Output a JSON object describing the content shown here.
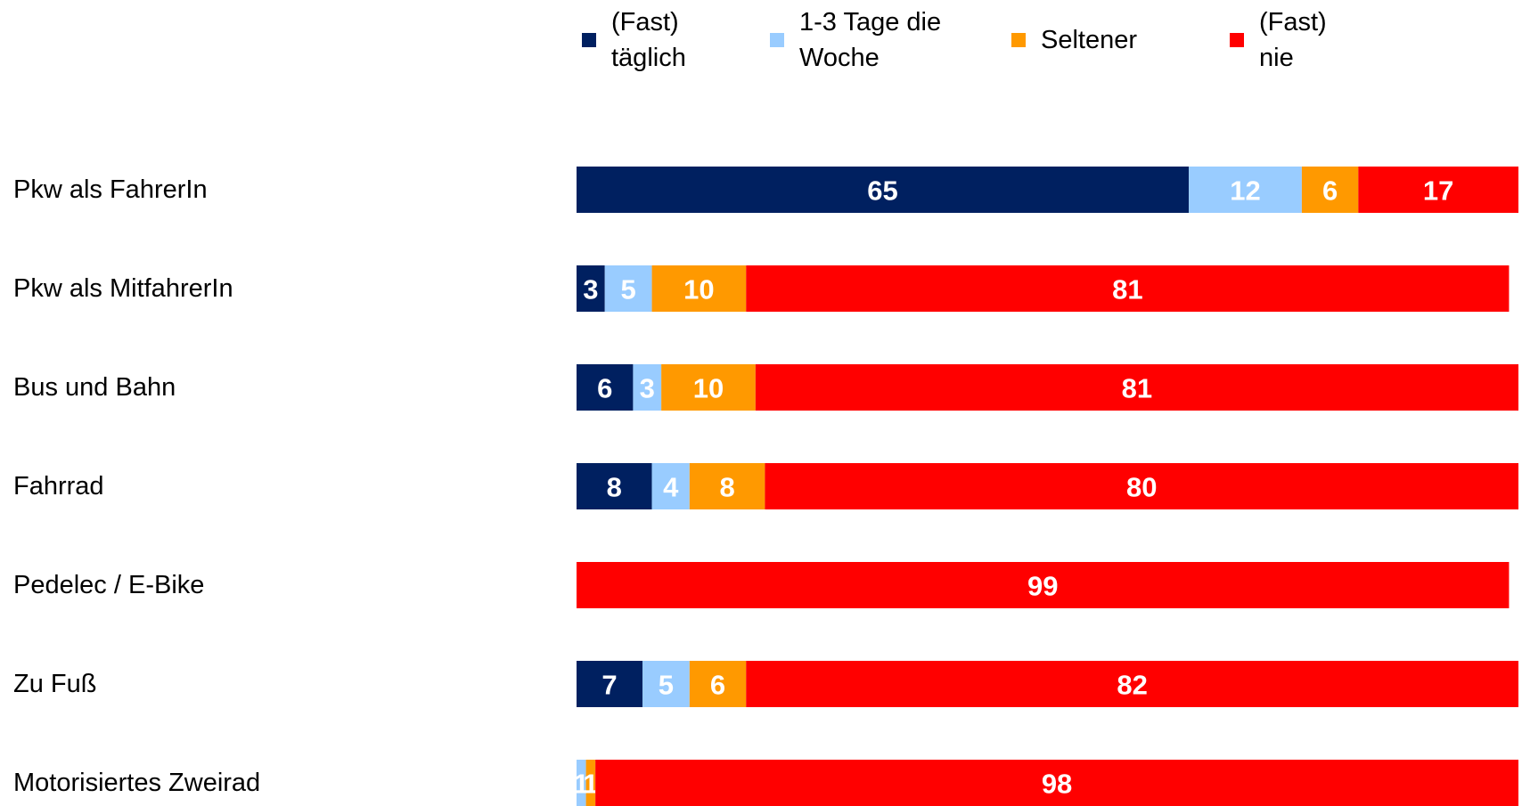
{
  "chart_data": {
    "type": "stacked-bar-horizontal",
    "categories": [
      "Pkw als FahrerIn",
      "Pkw als MitfahrerIn",
      "Bus und Bahn",
      "Fahrrad",
      "Pedelec / E-Bike",
      "Zu Fuß",
      "Motorisiertes Zweirad"
    ],
    "xlim": [
      0,
      100
    ],
    "legend": "top",
    "series": [
      {
        "name": "(Fast) täglich",
        "color": "#002060",
        "values": [
          65,
          3,
          6,
          8,
          0,
          7,
          0
        ]
      },
      {
        "name": "1-3 Tage die Woche",
        "color": "#99ccff",
        "values": [
          12,
          5,
          3,
          4,
          0,
          5,
          1
        ]
      },
      {
        "name": "Seltener",
        "color": "#ff9900",
        "values": [
          6,
          10,
          10,
          8,
          0,
          6,
          1
        ]
      },
      {
        "name": "(Fast) nie",
        "color": "#ff0000",
        "values": [
          17,
          81,
          81,
          80,
          99,
          82,
          98
        ]
      }
    ]
  }
}
